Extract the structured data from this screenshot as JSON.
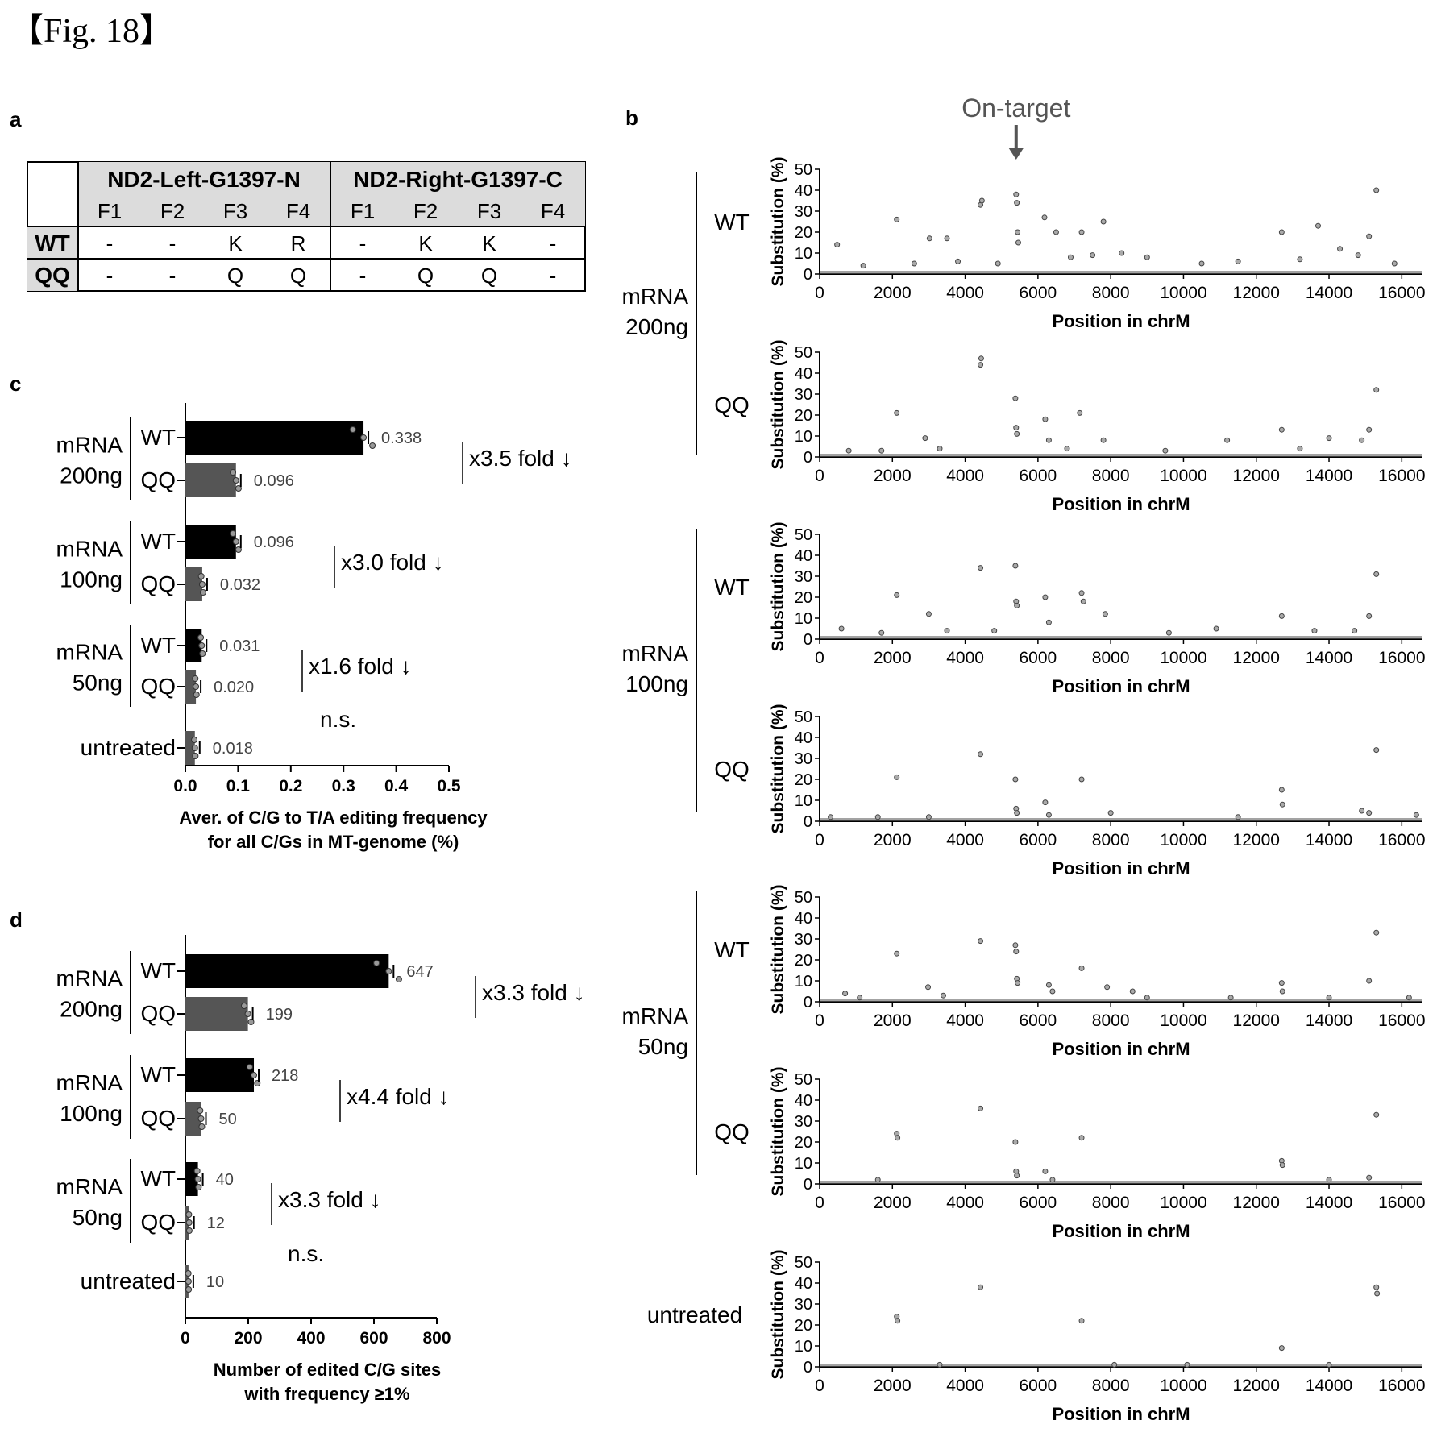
{
  "figure_label": "【Fig. 18】",
  "panels": {
    "a": "a",
    "b": "b",
    "c": "c",
    "d": "d"
  },
  "table": {
    "left_header": "ND2-Left-G1397-N",
    "right_header": "ND2-Right-G1397-C",
    "fingers": [
      "F1",
      "F2",
      "F3",
      "F4",
      "F1",
      "F2",
      "F3",
      "F4"
    ],
    "rows": [
      {
        "name": "WT",
        "cells": [
          "-",
          "-",
          "K",
          "R",
          "-",
          "K",
          "K",
          "-"
        ]
      },
      {
        "name": "QQ",
        "cells": [
          "-",
          "-",
          "Q",
          "Q",
          "-",
          "Q",
          "Q",
          "-"
        ]
      }
    ]
  },
  "chart_data": [
    {
      "id": "c",
      "type": "bar",
      "orientation": "horizontal",
      "groups": [
        {
          "label": "mRNA 200ng",
          "bars": [
            {
              "label": "WT",
              "value": 0.338,
              "color": "#000000"
            },
            {
              "label": "QQ",
              "value": 0.096,
              "color": "#555555"
            }
          ],
          "annotation": "x3.5 fold ↓"
        },
        {
          "label": "mRNA 100ng",
          "bars": [
            {
              "label": "WT",
              "value": 0.096,
              "color": "#000000"
            },
            {
              "label": "QQ",
              "value": 0.032,
              "color": "#555555"
            }
          ],
          "annotation": "x3.0 fold ↓"
        },
        {
          "label": "mRNA 50ng",
          "bars": [
            {
              "label": "WT",
              "value": 0.031,
              "color": "#000000"
            },
            {
              "label": "QQ",
              "value": 0.02,
              "color": "#555555"
            }
          ],
          "annotation": "x1.6 fold ↓"
        },
        {
          "label": "",
          "bars": [
            {
              "label": "untreated",
              "value": 0.018,
              "color": "#555555"
            }
          ],
          "annotation": ""
        }
      ],
      "value_labels": [
        "0.338",
        "0.096",
        "0.096",
        "0.032",
        "0.031",
        "0.020",
        "0.018"
      ],
      "ns_label": "n.s.",
      "xlim": [
        0,
        0.5
      ],
      "xticks": [
        "0.0",
        "0.1",
        "0.2",
        "0.3",
        "0.4",
        "0.5"
      ],
      "xlabel": [
        "Aver. of C/G to T/A editing frequency",
        "for all C/Gs in MT-genome (%)"
      ]
    },
    {
      "id": "d",
      "type": "bar",
      "orientation": "horizontal",
      "groups": [
        {
          "label": "mRNA 200ng",
          "bars": [
            {
              "label": "WT",
              "value": 647,
              "color": "#000000"
            },
            {
              "label": "QQ",
              "value": 199,
              "color": "#555555"
            }
          ],
          "annotation": "x3.3 fold ↓"
        },
        {
          "label": "mRNA 100ng",
          "bars": [
            {
              "label": "WT",
              "value": 218,
              "color": "#000000"
            },
            {
              "label": "QQ",
              "value": 50,
              "color": "#555555"
            }
          ],
          "annotation": "x4.4 fold ↓"
        },
        {
          "label": "mRNA 50ng",
          "bars": [
            {
              "label": "WT",
              "value": 40,
              "color": "#000000"
            },
            {
              "label": "QQ",
              "value": 12,
              "color": "#555555"
            }
          ],
          "annotation": "x3.3 fold ↓"
        },
        {
          "label": "",
          "bars": [
            {
              "label": "untreated",
              "value": 10,
              "color": "#555555"
            }
          ],
          "annotation": ""
        }
      ],
      "value_labels": [
        "647",
        "199",
        "218",
        "50",
        "40",
        "12",
        "10"
      ],
      "ns_label": "n.s.",
      "xlim": [
        0,
        800
      ],
      "xticks": [
        "0",
        "200",
        "400",
        "600",
        "800"
      ],
      "xlabel": [
        "Number of edited C/G sites",
        "with frequency ≥1%"
      ]
    },
    {
      "id": "b",
      "type": "scatter",
      "annotation": "On-target",
      "annotation_x": 5400,
      "xlim": [
        0,
        16569
      ],
      "ylim": [
        0,
        50
      ],
      "xticks": [
        "0",
        "2000",
        "4000",
        "6000",
        "8000",
        "10000",
        "12000",
        "14000",
        "16000"
      ],
      "yticks": [
        "0",
        "10",
        "20",
        "30",
        "40",
        "50"
      ],
      "xlabel": "Position in chrM",
      "ylabel": "Substitution (%)",
      "groups": [
        {
          "label": [
            "mRNA",
            "200ng"
          ],
          "plots": [
            0,
            1
          ]
        },
        {
          "label": [
            "mRNA",
            "100ng"
          ],
          "plots": [
            2,
            3
          ]
        },
        {
          "label": [
            "mRNA",
            "50ng"
          ],
          "plots": [
            4,
            5
          ]
        }
      ],
      "plots": [
        {
          "label": "WT",
          "points": [
            [
              480,
              14
            ],
            [
              2120,
              26
            ],
            [
              3020,
              17
            ],
            [
              3500,
              17
            ],
            [
              4420,
              33
            ],
            [
              4460,
              35
            ],
            [
              5400,
              38
            ],
            [
              5420,
              34
            ],
            [
              5440,
              20
            ],
            [
              5460,
              15
            ],
            [
              6180,
              27
            ],
            [
              6500,
              20
            ],
            [
              7200,
              20
            ],
            [
              7800,
              25
            ],
            [
              8300,
              10
            ],
            [
              9000,
              8
            ],
            [
              12700,
              20
            ],
            [
              13700,
              23
            ],
            [
              14300,
              12
            ],
            [
              15100,
              18
            ],
            [
              15300,
              40
            ],
            [
              15800,
              5
            ],
            [
              1200,
              4
            ],
            [
              2600,
              5
            ],
            [
              3800,
              6
            ],
            [
              4900,
              5
            ],
            [
              6900,
              8
            ],
            [
              7500,
              9
            ],
            [
              10500,
              5
            ],
            [
              11500,
              6
            ],
            [
              13200,
              7
            ],
            [
              14800,
              9
            ]
          ]
        },
        {
          "label": "QQ",
          "points": [
            [
              2120,
              21
            ],
            [
              2900,
              9
            ],
            [
              4420,
              44
            ],
            [
              4440,
              47
            ],
            [
              5380,
              28
            ],
            [
              5400,
              14
            ],
            [
              5420,
              11
            ],
            [
              6200,
              18
            ],
            [
              6300,
              8
            ],
            [
              7150,
              21
            ],
            [
              7800,
              8
            ],
            [
              11200,
              8
            ],
            [
              12700,
              13
            ],
            [
              14000,
              9
            ],
            [
              14900,
              8
            ],
            [
              15100,
              13
            ],
            [
              15300,
              32
            ],
            [
              800,
              3
            ],
            [
              1700,
              3
            ],
            [
              3300,
              4
            ],
            [
              6800,
              4
            ],
            [
              9500,
              3
            ],
            [
              13200,
              4
            ]
          ]
        },
        {
          "label": "WT",
          "points": [
            [
              2120,
              21
            ],
            [
              3000,
              12
            ],
            [
              4420,
              34
            ],
            [
              5380,
              35
            ],
            [
              5400,
              18
            ],
            [
              5420,
              16
            ],
            [
              6200,
              20
            ],
            [
              6300,
              8
            ],
            [
              7200,
              22
            ],
            [
              7250,
              18
            ],
            [
              7850,
              12
            ],
            [
              12700,
              11
            ],
            [
              14700,
              4
            ],
            [
              15100,
              11
            ],
            [
              15300,
              31
            ],
            [
              600,
              5
            ],
            [
              1700,
              3
            ],
            [
              3500,
              4
            ],
            [
              4800,
              4
            ],
            [
              9600,
              3
            ],
            [
              10900,
              5
            ],
            [
              13600,
              4
            ]
          ]
        },
        {
          "label": "QQ",
          "points": [
            [
              2120,
              21
            ],
            [
              4420,
              32
            ],
            [
              5380,
              20
            ],
            [
              5400,
              6
            ],
            [
              5420,
              4
            ],
            [
              6200,
              9
            ],
            [
              6300,
              3
            ],
            [
              7200,
              20
            ],
            [
              8000,
              4
            ],
            [
              12700,
              15
            ],
            [
              12720,
              8
            ],
            [
              14900,
              5
            ],
            [
              15100,
              4
            ],
            [
              15300,
              34
            ],
            [
              16400,
              3
            ],
            [
              300,
              2
            ],
            [
              1600,
              2
            ],
            [
              3000,
              2
            ],
            [
              11500,
              2
            ]
          ]
        },
        {
          "label": "WT",
          "points": [
            [
              2120,
              23
            ],
            [
              2980,
              7
            ],
            [
              4420,
              29
            ],
            [
              5380,
              27
            ],
            [
              5400,
              24
            ],
            [
              5420,
              11
            ],
            [
              5440,
              9
            ],
            [
              6300,
              8
            ],
            [
              6400,
              5
            ],
            [
              7200,
              16
            ],
            [
              7900,
              7
            ],
            [
              8600,
              5
            ],
            [
              12700,
              9
            ],
            [
              12720,
              5
            ],
            [
              14000,
              2
            ],
            [
              15100,
              10
            ],
            [
              15300,
              33
            ],
            [
              700,
              4
            ],
            [
              1100,
              2
            ],
            [
              3400,
              3
            ],
            [
              9000,
              2
            ],
            [
              11300,
              2
            ],
            [
              16200,
              2
            ]
          ]
        },
        {
          "label": "QQ",
          "points": [
            [
              1600,
              2
            ],
            [
              2120,
              24
            ],
            [
              2140,
              22
            ],
            [
              4420,
              36
            ],
            [
              5380,
              20
            ],
            [
              5400,
              6
            ],
            [
              5420,
              4
            ],
            [
              6200,
              6
            ],
            [
              6400,
              2
            ],
            [
              7200,
              22
            ],
            [
              12700,
              11
            ],
            [
              12720,
              9
            ],
            [
              14000,
              2
            ],
            [
              15100,
              3
            ],
            [
              15300,
              33
            ]
          ]
        },
        {
          "label": "untreated",
          "points": [
            [
              2120,
              24
            ],
            [
              2140,
              22
            ],
            [
              3300,
              1
            ],
            [
              4420,
              38
            ],
            [
              7200,
              22
            ],
            [
              8100,
              1
            ],
            [
              10100,
              1
            ],
            [
              12700,
              9
            ],
            [
              14000,
              1
            ],
            [
              15300,
              38
            ],
            [
              15320,
              35
            ]
          ]
        }
      ]
    }
  ]
}
